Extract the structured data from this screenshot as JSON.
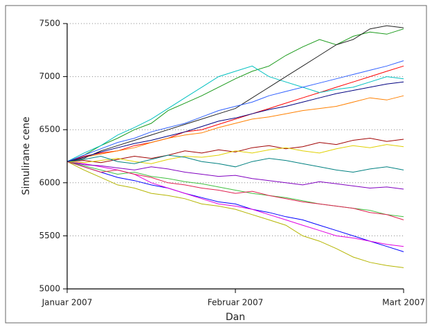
{
  "chart_data": {
    "type": "line",
    "xlabel": "Dan",
    "ylabel": "Simulirane cene",
    "x": [
      0,
      2,
      4,
      6,
      8,
      10,
      12,
      14,
      16,
      18,
      20,
      22,
      24,
      26,
      28,
      30,
      32,
      34,
      36,
      38,
      40
    ],
    "xlim": [
      0,
      40
    ],
    "xticks": [
      {
        "value": 0,
        "label": "Januar 2007"
      },
      {
        "value": 20,
        "label": "Februar 2007"
      },
      {
        "value": 40,
        "label": "Mart 2007"
      }
    ],
    "ylim": [
      5000,
      7500
    ],
    "yticks": [
      5000,
      5500,
      6000,
      6500,
      7000,
      7500
    ],
    "grid": true,
    "series": [
      {
        "color": "#1a9a1a",
        "values": [
          6200,
          6260,
          6350,
          6420,
          6500,
          6560,
          6680,
          6750,
          6820,
          6900,
          6980,
          7050,
          7100,
          7200,
          7280,
          7350,
          7300,
          7380,
          7420,
          7400,
          7450
        ]
      },
      {
        "color": "#b5b500",
        "values": [
          6200,
          6120,
          6050,
          5980,
          5950,
          5900,
          5880,
          5850,
          5800,
          5780,
          5750,
          5700,
          5650,
          5600,
          5500,
          5450,
          5380,
          5300,
          5250,
          5220,
          5200
        ]
      },
      {
        "color": "#ff0000",
        "values": [
          6200,
          6250,
          6280,
          6300,
          6350,
          6380,
          6420,
          6480,
          6500,
          6550,
          6600,
          6650,
          6700,
          6750,
          6800,
          6850,
          6900,
          6950,
          7000,
          7050,
          7100
        ]
      },
      {
        "color": "#0000ff",
        "values": [
          6200,
          6150,
          6100,
          6050,
          6020,
          5980,
          5950,
          5900,
          5860,
          5820,
          5800,
          5750,
          5720,
          5680,
          5650,
          5600,
          5550,
          5500,
          5450,
          5400,
          5350
        ]
      },
      {
        "color": "#00c0c0",
        "values": [
          6200,
          6280,
          6350,
          6450,
          6520,
          6600,
          6700,
          6800,
          6900,
          7000,
          7050,
          7100,
          7000,
          6950,
          6900,
          6850,
          6880,
          6900,
          6950,
          7000,
          6980
        ]
      },
      {
        "color": "#e000e0",
        "values": [
          6200,
          6180,
          6150,
          6120,
          6080,
          6000,
          5950,
          5900,
          5850,
          5800,
          5780,
          5750,
          5700,
          5650,
          5600,
          5550,
          5500,
          5480,
          5450,
          5420,
          5400
        ]
      },
      {
        "color": "#222222",
        "values": [
          6200,
          6230,
          6300,
          6350,
          6400,
          6450,
          6500,
          6550,
          6600,
          6650,
          6700,
          6800,
          6900,
          7000,
          7100,
          7200,
          7300,
          7350,
          7450,
          7480,
          7460
        ]
      },
      {
        "color": "#a00000",
        "values": [
          6200,
          6210,
          6190,
          6220,
          6250,
          6230,
          6260,
          6300,
          6280,
          6310,
          6290,
          6330,
          6350,
          6320,
          6340,
          6380,
          6360,
          6400,
          6420,
          6390,
          6410
        ]
      },
      {
        "color": "#8000c0",
        "values": [
          6200,
          6170,
          6160,
          6140,
          6120,
          6150,
          6130,
          6100,
          6080,
          6060,
          6070,
          6040,
          6020,
          6000,
          5980,
          6010,
          5990,
          5970,
          5950,
          5960,
          5940
        ]
      },
      {
        "color": "#ff8000",
        "values": [
          6200,
          6240,
          6270,
          6300,
          6330,
          6380,
          6420,
          6450,
          6470,
          6520,
          6560,
          6600,
          6620,
          6650,
          6680,
          6700,
          6720,
          6760,
          6800,
          6780,
          6820
        ]
      },
      {
        "color": "#40c040",
        "values": [
          6200,
          6160,
          6120,
          6080,
          6100,
          6060,
          6040,
          6010,
          5990,
          5960,
          5930,
          5900,
          5880,
          5860,
          5830,
          5800,
          5780,
          5760,
          5740,
          5700,
          5680
        ]
      },
      {
        "color": "#3060ff",
        "values": [
          6200,
          6260,
          6320,
          6380,
          6420,
          6480,
          6520,
          6560,
          6620,
          6680,
          6720,
          6760,
          6820,
          6860,
          6900,
          6940,
          6980,
          7020,
          7060,
          7100,
          7150
        ]
      },
      {
        "color": "#e0d000",
        "values": [
          6200,
          6190,
          6210,
          6230,
          6200,
          6180,
          6220,
          6250,
          6240,
          6260,
          6300,
          6280,
          6310,
          6330,
          6300,
          6280,
          6320,
          6350,
          6330,
          6360,
          6340
        ]
      },
      {
        "color": "#008080",
        "values": [
          6200,
          6220,
          6250,
          6200,
          6180,
          6220,
          6260,
          6240,
          6200,
          6180,
          6150,
          6200,
          6230,
          6210,
          6180,
          6150,
          6120,
          6100,
          6130,
          6150,
          6120
        ]
      },
      {
        "color": "#e02050",
        "values": [
          6200,
          6150,
          6100,
          6120,
          6080,
          6050,
          6000,
          5980,
          5950,
          5930,
          5900,
          5920,
          5880,
          5850,
          5820,
          5800,
          5780,
          5760,
          5720,
          5700,
          5650
        ]
      },
      {
        "color": "#000080",
        "values": [
          6200,
          6240,
          6290,
          6330,
          6370,
          6400,
          6440,
          6480,
          6530,
          6580,
          6610,
          6650,
          6690,
          6720,
          6760,
          6800,
          6840,
          6870,
          6900,
          6930,
          6950
        ]
      }
    ]
  }
}
